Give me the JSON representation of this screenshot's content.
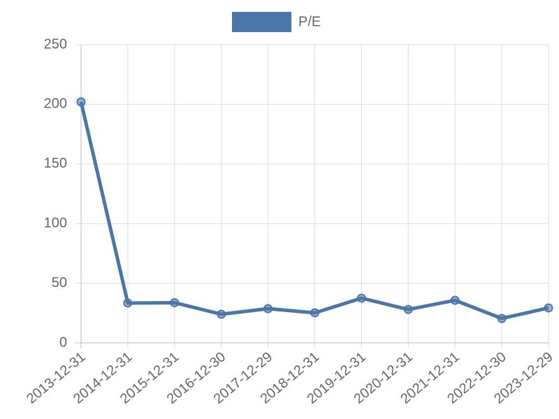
{
  "chart_data": {
    "type": "line",
    "categories": [
      "2013-12-31",
      "2014-12-31",
      "2015-12-31",
      "2016-12-30",
      "2017-12-29",
      "2018-12-31",
      "2019-12-31",
      "2020-12-31",
      "2021-12-31",
      "2022-12-30",
      "2023-12-29"
    ],
    "series": [
      {
        "name": "P/E",
        "color": "#4a76a8",
        "values": [
          202,
          33.4,
          33.7,
          24,
          28.7,
          25.2,
          37.5,
          28,
          35.7,
          20.5,
          29.3
        ]
      }
    ],
    "ylim": [
      0,
      250
    ],
    "yticks": [
      0,
      50,
      100,
      150,
      200,
      250
    ],
    "grid": true,
    "legend": "top"
  }
}
